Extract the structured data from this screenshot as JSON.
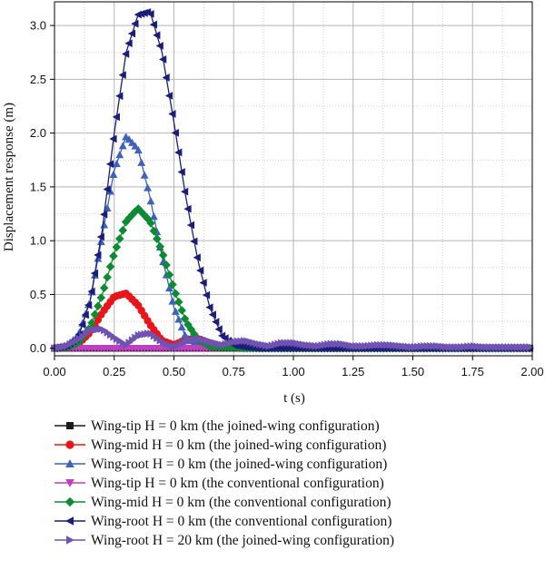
{
  "chart_data": {
    "type": "line",
    "title": "",
    "xlabel": "t (s)",
    "ylabel": "Displacement response (m)",
    "xlim": [
      0,
      2.0
    ],
    "ylim": [
      -0.07,
      3.22
    ],
    "x_ticks": [
      "0.00",
      "0.25",
      "0.50",
      "0.75",
      "1.00",
      "1.25",
      "1.50",
      "1.75",
      "2.00"
    ],
    "y_ticks": [
      "0.0",
      "0.5",
      "1.0",
      "1.5",
      "2.0",
      "2.5",
      "3.0"
    ],
    "x_tick_values": [
      0,
      0.25,
      0.5,
      0.75,
      1.0,
      1.25,
      1.5,
      1.75,
      2.0
    ],
    "y_tick_values": [
      0,
      0.5,
      1.0,
      1.5,
      2.0,
      2.5,
      3.0
    ],
    "grid": true,
    "legend_position": "bottom",
    "x": [
      0,
      0.05,
      0.1,
      0.15,
      0.2,
      0.25,
      0.3,
      0.35,
      0.4,
      0.45,
      0.5,
      0.55,
      0.6,
      0.65,
      0.7,
      0.75,
      0.8,
      0.85,
      0.9,
      0.95,
      1.0,
      1.05,
      1.1,
      1.15,
      1.2,
      1.25,
      1.3,
      1.35,
      1.4,
      1.45,
      1.5,
      1.55,
      1.6,
      1.65,
      1.7,
      1.75,
      1.8,
      1.85,
      1.9,
      1.95,
      2.0
    ],
    "series": [
      {
        "name": "Wing-tip H = 0 km (the joined-wing configuration)",
        "color": "#1a1a1a",
        "marker": "square",
        "values": [
          0,
          0,
          0,
          0,
          0,
          0,
          0,
          0,
          0,
          0,
          0,
          0,
          0,
          0,
          0,
          0,
          0,
          0,
          0,
          0,
          0,
          0,
          0,
          0,
          0,
          0,
          0,
          0,
          0,
          0,
          0,
          0,
          0,
          0,
          0,
          0,
          0,
          0,
          0,
          0,
          0
        ]
      },
      {
        "name": "Wing-mid H = 0 km (the joined-wing configuration)",
        "color": "#e8151b",
        "marker": "circle",
        "values": [
          0,
          0.01,
          0.04,
          0.15,
          0.33,
          0.48,
          0.51,
          0.4,
          0.22,
          0.07,
          0.03,
          0.08,
          0.09,
          0.05,
          0.02,
          0.01,
          0.01,
          0,
          0,
          0,
          0,
          0,
          0,
          0,
          0,
          0,
          0,
          0,
          0,
          0,
          0,
          0,
          0,
          0,
          0,
          0,
          0,
          0,
          0,
          0,
          0
        ]
      },
      {
        "name": "Wing-root H = 0 km (the joined-wing configuration)",
        "color": "#3e62b8",
        "marker": "triangle-up",
        "values": [
          0,
          0.02,
          0.12,
          0.45,
          1.05,
          1.65,
          1.97,
          1.85,
          1.4,
          0.85,
          0.38,
          0.1,
          0.03,
          0.02,
          0.02,
          0.01,
          0.01,
          0,
          0,
          0,
          0,
          0,
          0,
          0,
          0,
          0,
          0,
          0,
          0,
          0,
          0,
          0,
          0,
          0,
          0,
          0,
          0,
          0,
          0,
          0,
          0
        ]
      },
      {
        "name": "Wing-tip H = 0 km (the conventional configuration)",
        "color": "#c03ec0",
        "marker": "triangle-down",
        "values": [
          0,
          0,
          0,
          0,
          0,
          0,
          0,
          0,
          0,
          0,
          0,
          0,
          0,
          0,
          0,
          0,
          0,
          0,
          0,
          0,
          0,
          0,
          0,
          0,
          0,
          0,
          0,
          0,
          0,
          0,
          0,
          0,
          0,
          0,
          0,
          0,
          0,
          0,
          0,
          0,
          0
        ]
      },
      {
        "name": "Wing-mid H = 0 km (the conventional configuration)",
        "color": "#0e8a32",
        "marker": "diamond",
        "values": [
          0,
          0.01,
          0.05,
          0.2,
          0.5,
          0.88,
          1.18,
          1.3,
          1.18,
          0.9,
          0.55,
          0.25,
          0.08,
          0.02,
          0.01,
          0.01,
          0,
          0,
          0,
          0,
          0,
          0,
          0,
          0,
          0,
          0,
          0,
          0,
          0,
          0,
          0,
          0,
          0,
          0,
          0,
          0,
          0,
          0,
          0,
          0,
          0
        ]
      },
      {
        "name": "Wing-root H = 0 km (the conventional configuration)",
        "color": "#1b1e78",
        "marker": "triangle-left",
        "values": [
          0,
          0.02,
          0.1,
          0.45,
          1.1,
          2.0,
          2.75,
          3.1,
          3.13,
          2.75,
          2.1,
          1.4,
          0.82,
          0.38,
          0.12,
          0.03,
          0.01,
          0,
          0,
          0,
          0,
          0,
          0,
          0,
          0,
          0,
          0,
          0,
          0,
          0,
          0,
          0,
          0,
          0,
          0,
          0,
          0,
          0,
          0,
          0,
          0
        ]
      },
      {
        "name": "Wing-root H = 20 km (the joined-wing configuration)",
        "color": "#6f52b2",
        "marker": "triangle-right",
        "values": [
          0,
          0.02,
          0.08,
          0.17,
          0.18,
          0.1,
          0.03,
          0.12,
          0.14,
          0.06,
          0.01,
          0.06,
          0.09,
          0.06,
          0.03,
          0.06,
          0.07,
          0.04,
          0.02,
          0.05,
          0.05,
          0.03,
          0.02,
          0.04,
          0.04,
          0.02,
          0.02,
          0.03,
          0.03,
          0.02,
          0.01,
          0.02,
          0.02,
          0.01,
          0.01,
          0.02,
          0.01,
          0.01,
          0.01,
          0.01,
          0.01
        ]
      }
    ]
  }
}
